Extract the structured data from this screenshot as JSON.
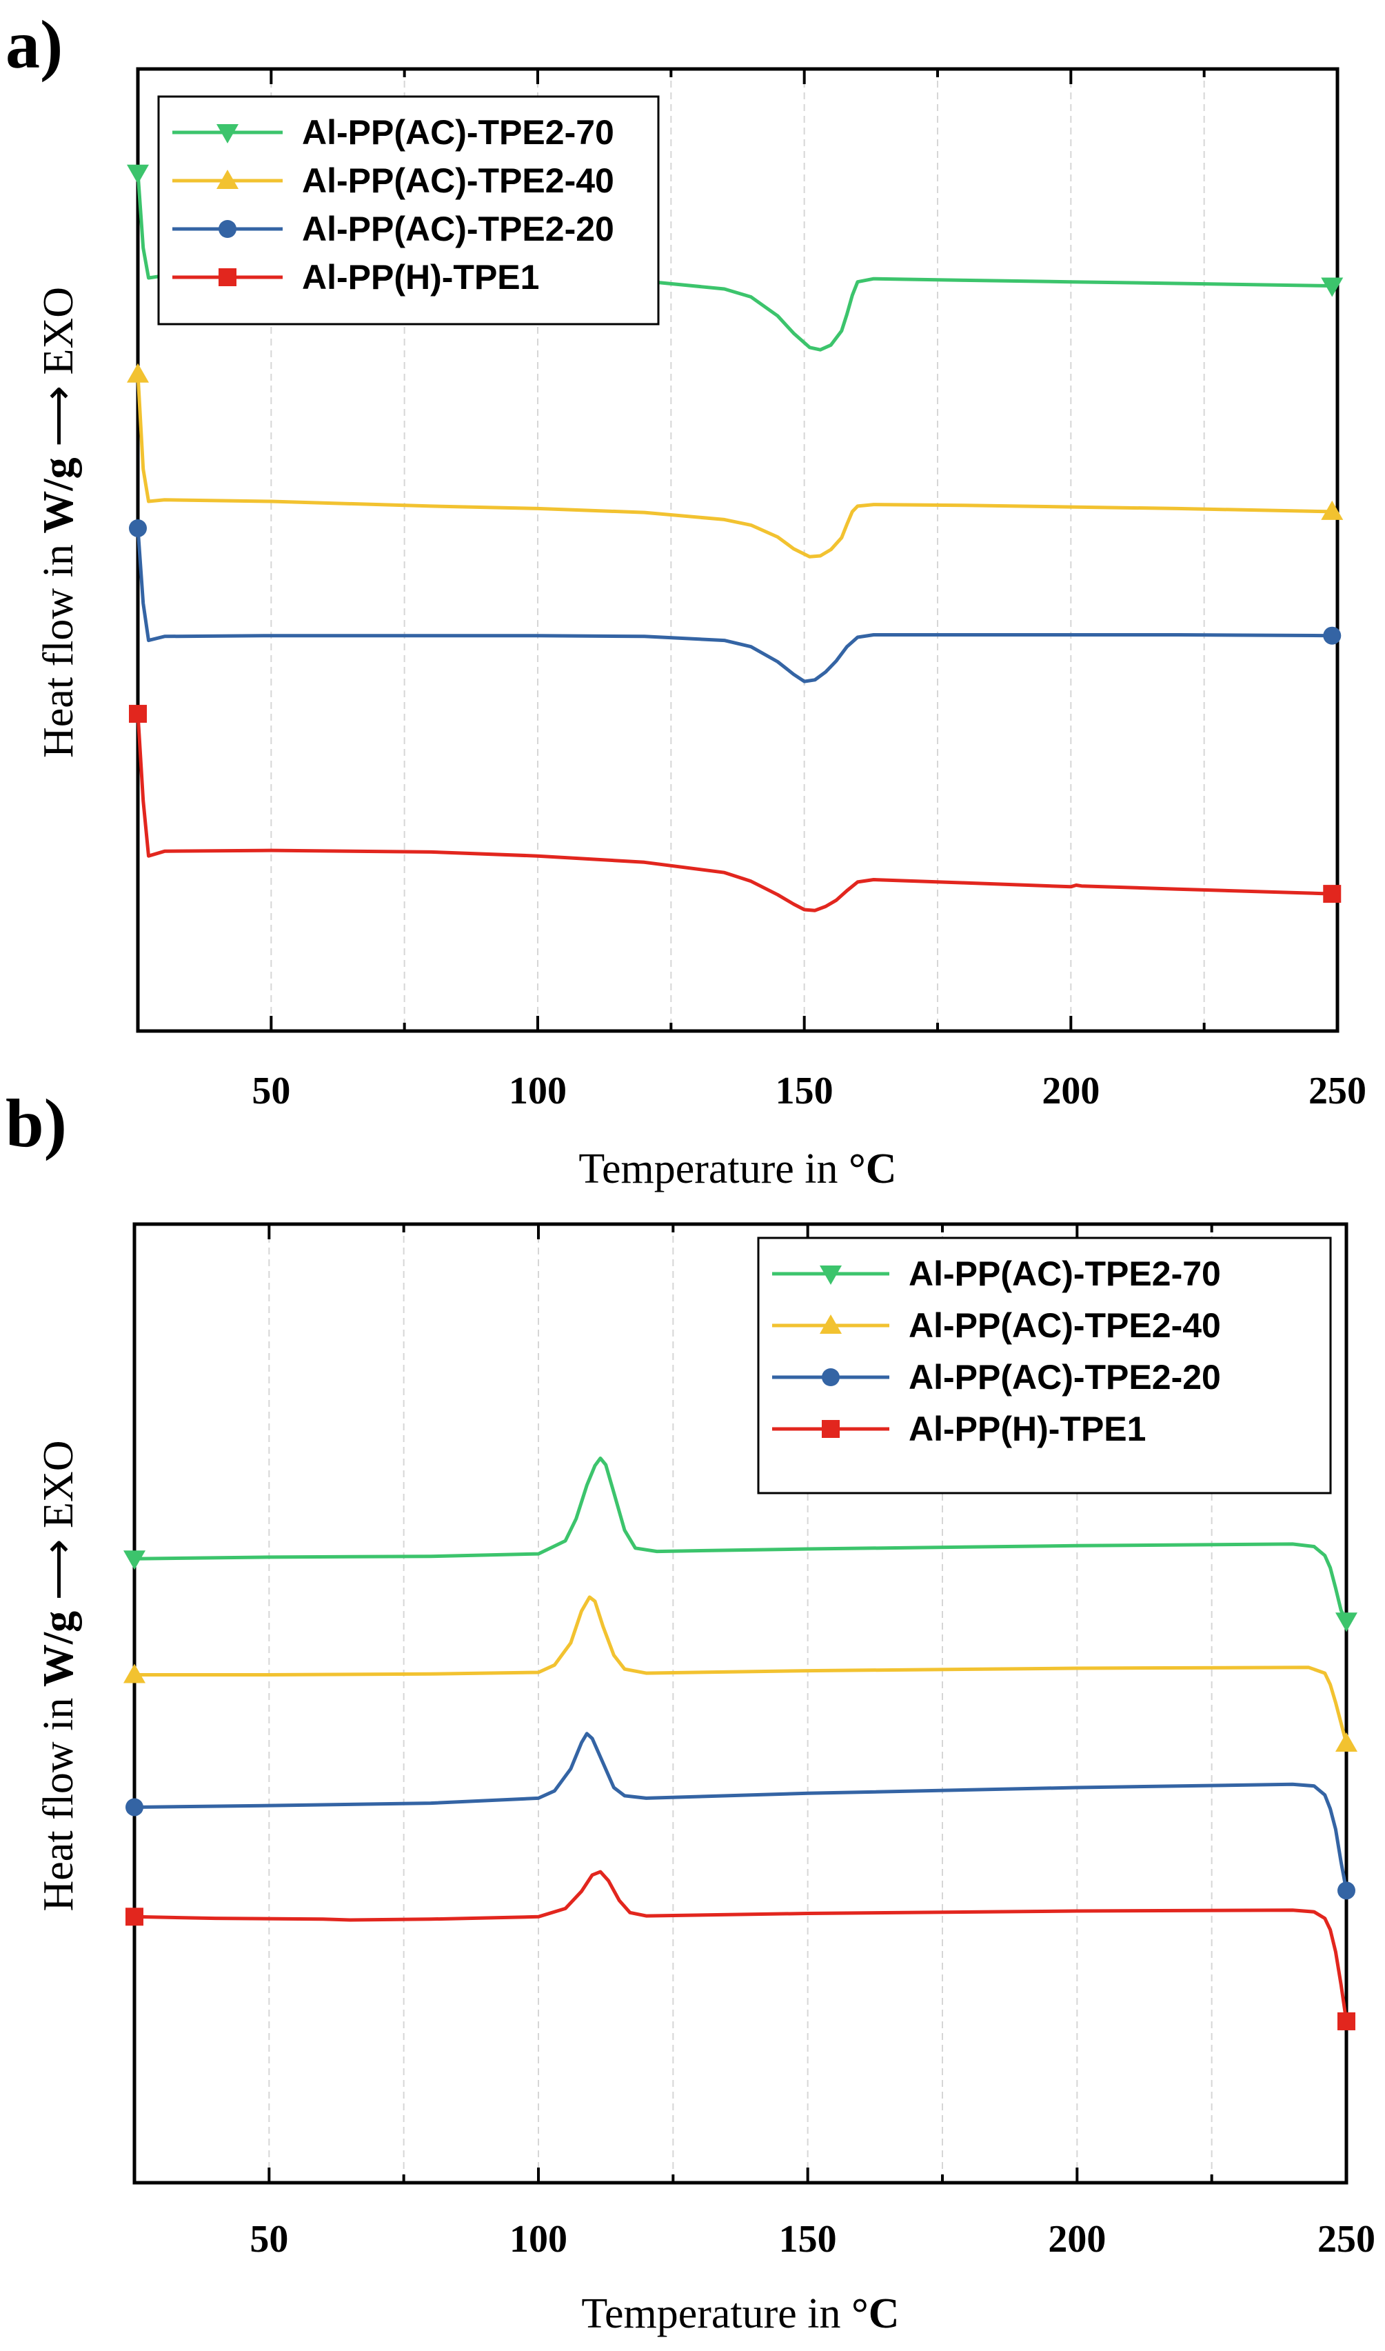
{
  "chart_data": [
    {
      "panel_label": "a)",
      "type": "line",
      "xlabel_prefix": "Temperature in ",
      "xlabel_unit": "°C",
      "ylabel_prefix": "Heat flow in ",
      "ylabel_unit": "W/g",
      "ylabel_arrow": "⟶",
      "ylabel_suffix": "EXO",
      "xlim": [
        25,
        250
      ],
      "ylim": [
        0,
        100
      ],
      "xticks": [
        50,
        100,
        150,
        200,
        250
      ],
      "y_ticks_shown": false,
      "grid": "vertical dashed",
      "legend_position": "top-left",
      "series": [
        {
          "name": "Al-PP(AC)-TPE2-70",
          "color": "#3cc46c",
          "marker": "triangle-down",
          "x": [
            25,
            26,
            27,
            30,
            50,
            80,
            100,
            120,
            135,
            140,
            145,
            148,
            151,
            153,
            155,
            157,
            158,
            159,
            160,
            163,
            180,
            200,
            220,
            249
          ],
          "y": [
            99.5,
            90,
            86.2,
            86.5,
            86.6,
            86.5,
            86.3,
            85.8,
            84.8,
            83.8,
            81.4,
            79.2,
            77.4,
            77.1,
            77.7,
            79.5,
            81.6,
            84.0,
            85.7,
            86.1,
            85.9,
            85.7,
            85.5,
            85.2
          ]
        },
        {
          "name": "Al-PP(AC)-TPE2-40",
          "color": "#f2c230",
          "marker": "triangle-up",
          "x": [
            25,
            26,
            27,
            30,
            50,
            80,
            100,
            120,
            135,
            140,
            145,
            148,
            151,
            153,
            155,
            157,
            158,
            159,
            160,
            163,
            180,
            200,
            220,
            249
          ],
          "y": [
            74,
            62,
            57.9,
            58.1,
            57.9,
            57.3,
            57.0,
            56.5,
            55.6,
            54.9,
            53.4,
            51.9,
            50.9,
            51.0,
            51.8,
            53.3,
            55.0,
            56.6,
            57.3,
            57.5,
            57.4,
            57.2,
            57.0,
            56.6
          ]
        },
        {
          "name": "Al-PP(AC)-TPE2-20",
          "color": "#3464a4",
          "marker": "circle",
          "x": [
            25,
            26,
            27,
            30,
            50,
            80,
            100,
            120,
            135,
            140,
            145,
            148,
            150,
            152,
            154,
            156,
            158,
            160,
            163,
            180,
            200,
            220,
            249
          ],
          "y": [
            54.5,
            45,
            40.3,
            40.8,
            40.9,
            40.9,
            40.9,
            40.8,
            40.3,
            39.5,
            37.6,
            36.0,
            35.1,
            35.3,
            36.3,
            37.7,
            39.5,
            40.7,
            41.0,
            41.0,
            41.0,
            41.0,
            40.9
          ]
        },
        {
          "name": "Al-PP(H)-TPE1",
          "color": "#e2261e",
          "marker": "square",
          "x": [
            25,
            26,
            27,
            30,
            50,
            80,
            100,
            120,
            135,
            140,
            145,
            148,
            150,
            152,
            154,
            156,
            158,
            160,
            163,
            180,
            200,
            201,
            202,
            220,
            249
          ],
          "y": [
            31,
            20,
            13.0,
            13.6,
            13.7,
            13.5,
            13.0,
            12.2,
            10.9,
            9.8,
            8.1,
            6.9,
            6.2,
            6.1,
            6.6,
            7.4,
            8.6,
            9.7,
            10.0,
            9.6,
            9.1,
            9.3,
            9.2,
            8.8,
            8.2
          ]
        }
      ]
    },
    {
      "panel_label": "b)",
      "type": "line",
      "xlabel_prefix": "Temperature in ",
      "xlabel_unit": "°C",
      "ylabel_prefix": "Heat flow in ",
      "ylabel_unit": "W/g",
      "ylabel_arrow": "⟶",
      "ylabel_suffix": "EXO",
      "xlim": [
        25,
        250
      ],
      "ylim": [
        0,
        100
      ],
      "xticks": [
        50,
        100,
        150,
        200,
        250
      ],
      "y_ticks_shown": false,
      "grid": "vertical dashed",
      "legend_position": "top-right",
      "series": [
        {
          "name": "Al-PP(AC)-TPE2-70",
          "color": "#3cc46c",
          "marker": "triangle-down",
          "x": [
            25,
            50,
            80,
            100,
            105,
            107,
            109,
            110.5,
            111.5,
            112.5,
            114,
            116,
            118,
            122,
            150,
            200,
            240,
            244,
            246,
            247,
            248,
            249,
            250
          ],
          "y": [
            69.6,
            69.8,
            69.9,
            70.2,
            71.8,
            74.5,
            78.6,
            81.0,
            81.9,
            81.1,
            77.7,
            73.1,
            70.9,
            70.5,
            70.8,
            71.2,
            71.4,
            71.1,
            70.0,
            68.5,
            66.0,
            63.3,
            62.0
          ]
        },
        {
          "name": "Al-PP(AC)-TPE2-40",
          "color": "#f2c230",
          "marker": "triangle-up",
          "x": [
            25,
            50,
            80,
            100,
            103,
            106,
            108,
            109.5,
            110.5,
            112,
            114,
            116,
            120,
            150,
            200,
            243,
            246,
            247,
            248,
            249,
            250
          ],
          "y": [
            55.4,
            55.4,
            55.5,
            55.7,
            56.6,
            59.3,
            63.2,
            64.9,
            64.4,
            61.3,
            57.8,
            56.1,
            55.6,
            55.9,
            56.2,
            56.3,
            55.6,
            54.2,
            52.0,
            49.5,
            47.0
          ]
        },
        {
          "name": "Al-PP(AC)-TPE2-20",
          "color": "#3464a4",
          "marker": "circle",
          "x": [
            25,
            50,
            80,
            100,
            103,
            106,
            108,
            109,
            110,
            112,
            114,
            116,
            120,
            150,
            200,
            240,
            244,
            246,
            247,
            248,
            249,
            250
          ],
          "y": [
            39.2,
            39.4,
            39.7,
            40.3,
            41.2,
            43.9,
            47.1,
            48.2,
            47.6,
            44.6,
            41.6,
            40.6,
            40.3,
            40.9,
            41.6,
            42.0,
            41.8,
            40.7,
            39.0,
            36.5,
            32.5,
            29.0
          ]
        },
        {
          "name": "Al-PP(H)-TPE1",
          "color": "#e2261e",
          "marker": "square",
          "x": [
            25,
            40,
            60,
            65,
            80,
            100,
            105,
            108,
            110,
            111.5,
            113,
            115,
            117,
            120,
            150,
            200,
            240,
            244,
            246,
            247,
            248,
            249,
            250
          ],
          "y": [
            25.8,
            25.6,
            25.5,
            25.4,
            25.5,
            25.8,
            26.8,
            28.9,
            30.9,
            31.3,
            30.2,
            27.8,
            26.3,
            25.9,
            26.2,
            26.5,
            26.6,
            26.4,
            25.6,
            24.2,
            21.5,
            17.5,
            13.0
          ]
        }
      ]
    }
  ]
}
